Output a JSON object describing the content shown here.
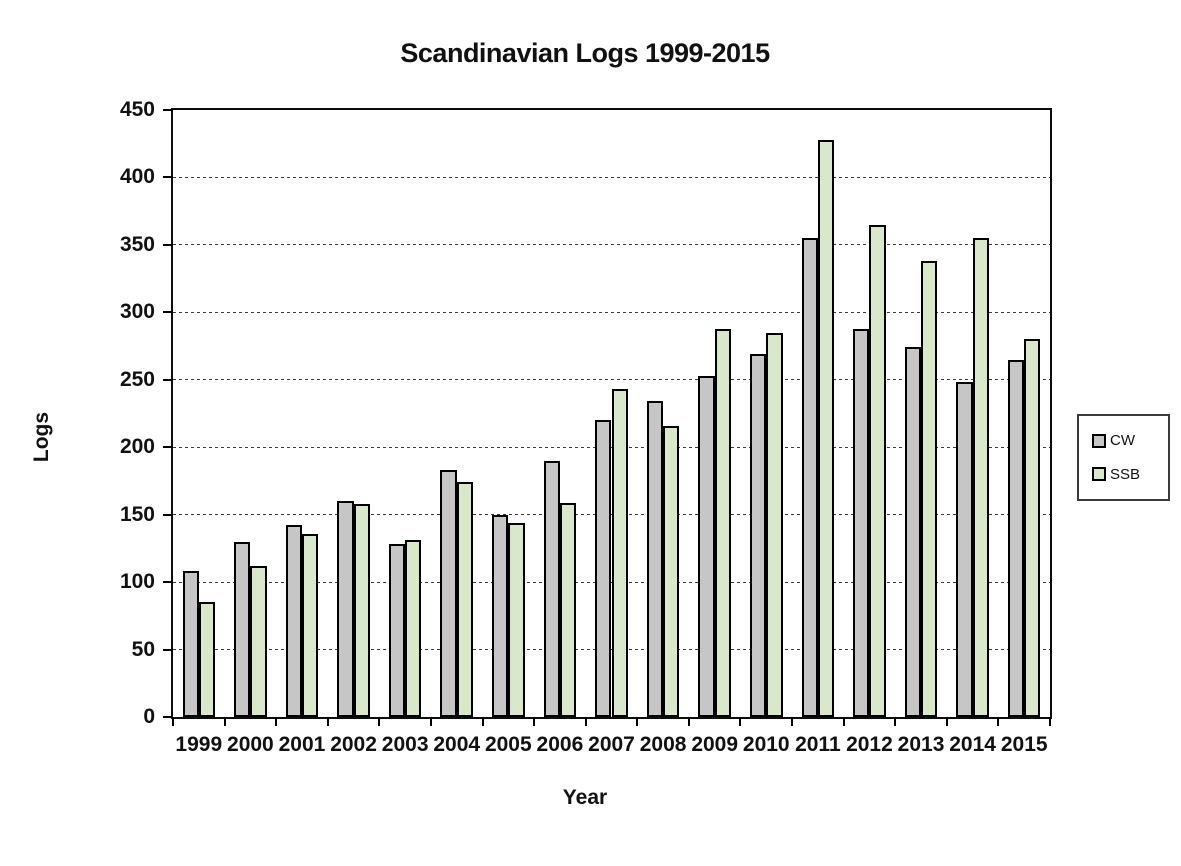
{
  "chart_data": {
    "type": "bar",
    "title": "Scandinavian Logs 1999-2015",
    "xlabel": "Year",
    "ylabel": "Logs",
    "ylim": [
      0,
      450
    ],
    "ytick_step": 50,
    "grid": "horizontal-dashed",
    "legend_position": "right",
    "plot_border": true,
    "bar_border_color": "#000000",
    "categories": [
      "1999",
      "2000",
      "2001",
      "2002",
      "2003",
      "2004",
      "2005",
      "2006",
      "2007",
      "2008",
      "2009",
      "2010",
      "2011",
      "2012",
      "2013",
      "2014",
      "2015"
    ],
    "series": [
      {
        "name": "CW",
        "color": "#c6c6c6",
        "values": [
          108,
          130,
          142,
          160,
          128,
          183,
          150,
          190,
          220,
          234,
          253,
          269,
          355,
          288,
          274,
          248,
          265
        ]
      },
      {
        "name": "SSB",
        "color": "#d9e8ca",
        "values": [
          85,
          112,
          136,
          158,
          131,
          174,
          144,
          159,
          243,
          216,
          288,
          285,
          428,
          365,
          338,
          355,
          280
        ]
      }
    ]
  }
}
